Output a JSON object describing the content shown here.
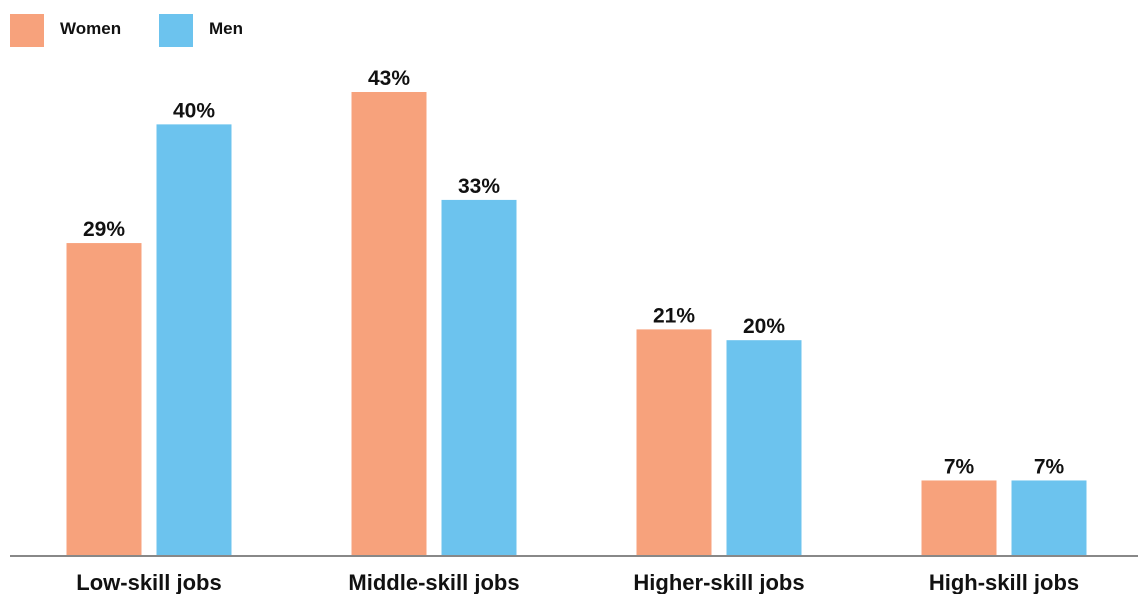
{
  "chart_data": {
    "type": "bar",
    "categories": [
      "Low-skill jobs",
      "Middle-skill jobs",
      "Higher-skill jobs",
      "High-skill jobs"
    ],
    "series": [
      {
        "name": "Women",
        "values": [
          29,
          43,
          21,
          7
        ],
        "labels": [
          "29%",
          "43%",
          "21%",
          "7%"
        ],
        "color": "#f7a27c"
      },
      {
        "name": "Men",
        "values": [
          40,
          33,
          20,
          7
        ],
        "labels": [
          "40%",
          "33%",
          "20%",
          "7%"
        ],
        "color": "#6cc3ee"
      }
    ],
    "ylim": [
      0,
      43
    ],
    "grid": false,
    "legend": "top-left",
    "axis_color": "#888888"
  }
}
